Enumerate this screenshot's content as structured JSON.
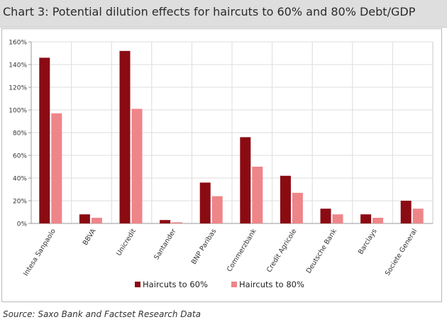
{
  "header": {
    "title": "Chart 3: Potential dilution effects for haircuts to 60% and 80% Debt/GDP"
  },
  "source": "Source: Saxo Bank and Factset Research Data",
  "chart_data": {
    "type": "bar",
    "categories": [
      "Intesa Sanpaolo",
      "BBVA",
      "Unicredit",
      "Santander",
      "BNP Paribas",
      "Commerzbank",
      "Credit Agricole",
      "Deutsche Bank",
      "Barclays",
      "Societe General"
    ],
    "series": [
      {
        "name": "Haircuts to 60%",
        "color": "#8b0b13",
        "values": [
          146,
          8,
          152,
          3,
          36,
          76,
          42,
          13,
          8,
          20
        ]
      },
      {
        "name": "Haircuts to 80%",
        "color": "#ee8589",
        "values": [
          97,
          5,
          101,
          1,
          24,
          50,
          27,
          8,
          5,
          13
        ]
      }
    ],
    "yticks": [
      "0%",
      "20%",
      "40%",
      "60%",
      "80%",
      "100%",
      "120%",
      "140%",
      "160%"
    ],
    "ylim": [
      0,
      160
    ],
    "grid": true,
    "legend_position": "bottom-center"
  }
}
